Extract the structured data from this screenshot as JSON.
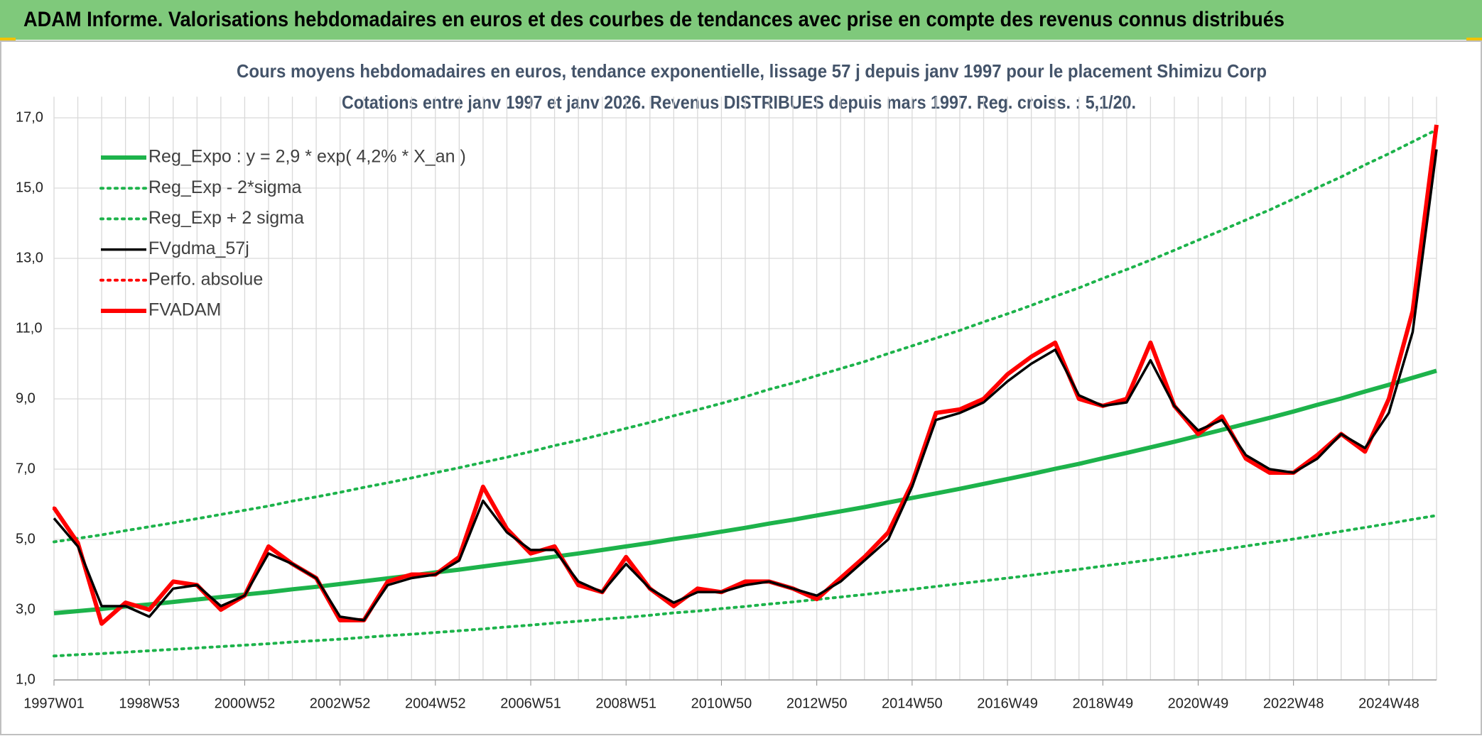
{
  "header": {
    "title": "ADAM Informe. Valorisations hebdomadaires en euros et des courbes de tendances avec prise en compte des revenus connus distribués"
  },
  "chart_data": {
    "type": "line",
    "title": "Cours moyens hebdomadaires en euros, tendance exponentielle, lissage 57 j depuis janv 1997 pour le placement Shimizu Corp",
    "subtitle": "Cotations entre janv 1997 et janv 2026. Revenus DISTRIBUES depuis mars 1997. Reg. croiss. : 5,1/20.",
    "categories": [
      "1997W01",
      null,
      null,
      null,
      "1998W53",
      null,
      null,
      null,
      "2000W52",
      null,
      null,
      null,
      "2002W52",
      null,
      null,
      null,
      "2004W52",
      null,
      null,
      null,
      "2006W51",
      null,
      null,
      null,
      "2008W51",
      null,
      null,
      null,
      "2010W50",
      null,
      null,
      null,
      "2012W50",
      null,
      null,
      null,
      "2014W50",
      null,
      null,
      null,
      "2016W49",
      null,
      null,
      null,
      "2018W49",
      null,
      null,
      null,
      "2020W49",
      null,
      null,
      null,
      "2022W48",
      null,
      null,
      null,
      "2024W48",
      null,
      null
    ],
    "series": [
      {
        "name": "Reg_Expo : y = 2,9 * exp( 4,2% *  X_an )",
        "color": "#1db34b",
        "line_style": "solid-thick",
        "values": [
          2.9,
          2.96,
          3.02,
          3.09,
          3.15,
          3.22,
          3.29,
          3.36,
          3.43,
          3.5,
          3.58,
          3.65,
          3.73,
          3.81,
          3.89,
          3.97,
          4.06,
          4.14,
          4.23,
          4.32,
          4.41,
          4.51,
          4.6,
          4.7,
          4.8,
          4.9,
          5.01,
          5.11,
          5.22,
          5.33,
          5.45,
          5.56,
          5.68,
          5.8,
          5.92,
          6.05,
          6.18,
          6.31,
          6.44,
          6.58,
          6.72,
          6.86,
          7.01,
          7.15,
          7.31,
          7.46,
          7.62,
          7.78,
          7.95,
          8.12,
          8.29,
          8.46,
          8.64,
          8.83,
          9.01,
          9.21,
          9.4,
          9.6,
          9.8
        ]
      },
      {
        "name": "Reg_Exp - 2*sigma",
        "color": "#1db34b",
        "line_style": "dotted",
        "values": [
          1.68,
          1.72,
          1.75,
          1.79,
          1.83,
          1.87,
          1.91,
          1.95,
          1.99,
          2.03,
          2.08,
          2.12,
          2.16,
          2.21,
          2.26,
          2.3,
          2.35,
          2.4,
          2.45,
          2.51,
          2.56,
          2.62,
          2.67,
          2.73,
          2.78,
          2.84,
          2.91,
          2.96,
          3.03,
          3.09,
          3.16,
          3.22,
          3.29,
          3.36,
          3.43,
          3.51,
          3.58,
          3.66,
          3.74,
          3.82,
          3.9,
          3.98,
          4.07,
          4.15,
          4.24,
          4.33,
          4.42,
          4.51,
          4.61,
          4.71,
          4.81,
          4.91,
          5.01,
          5.12,
          5.23,
          5.34,
          5.45,
          5.57,
          5.68
        ]
      },
      {
        "name": "Reg_Exp + 2 sigma",
        "color": "#1db34b",
        "line_style": "dotted",
        "values": [
          4.93,
          5.03,
          5.13,
          5.25,
          5.36,
          5.47,
          5.59,
          5.71,
          5.83,
          5.95,
          6.09,
          6.21,
          6.34,
          6.48,
          6.61,
          6.75,
          6.9,
          7.04,
          7.19,
          7.34,
          7.5,
          7.67,
          7.82,
          7.99,
          8.16,
          8.33,
          8.52,
          8.69,
          8.87,
          9.06,
          9.27,
          9.45,
          9.66,
          9.86,
          10.06,
          10.29,
          10.51,
          10.73,
          10.95,
          11.19,
          11.42,
          11.66,
          11.92,
          12.16,
          12.43,
          12.68,
          12.95,
          13.23,
          13.52,
          13.8,
          14.09,
          14.38,
          14.69,
          15.01,
          15.32,
          15.66,
          15.98,
          16.32,
          16.66
        ]
      },
      {
        "name": "FVgdma_57j",
        "color": "#000000",
        "line_style": "solid",
        "values": [
          5.6,
          4.8,
          3.1,
          3.1,
          2.8,
          3.6,
          3.7,
          3.1,
          3.4,
          4.6,
          4.3,
          3.9,
          2.8,
          2.7,
          3.7,
          3.9,
          4.0,
          4.4,
          6.1,
          5.2,
          4.7,
          4.7,
          3.8,
          3.5,
          4.3,
          3.6,
          3.2,
          3.5,
          3.5,
          3.7,
          3.8,
          3.6,
          3.4,
          3.8,
          4.4,
          5.0,
          6.5,
          8.4,
          8.6,
          8.9,
          9.5,
          10.0,
          10.4,
          9.1,
          8.8,
          8.9,
          10.1,
          8.8,
          8.1,
          8.4,
          7.4,
          7.0,
          6.9,
          7.3,
          8.0,
          7.6,
          8.6,
          10.9,
          16.1
        ]
      },
      {
        "name": "Perfo. absolue",
        "color": "#ff0000",
        "line_style": "dotted",
        "values": [
          5.9,
          4.9,
          2.6,
          3.2,
          3.0,
          3.8,
          3.7,
          3.0,
          3.4,
          4.8,
          4.3,
          3.9,
          2.7,
          2.7,
          3.8,
          4.0,
          4.0,
          4.5,
          6.5,
          5.3,
          4.6,
          4.8,
          3.7,
          3.5,
          4.5,
          3.6,
          3.1,
          3.6,
          3.5,
          3.8,
          3.8,
          3.6,
          3.3,
          3.9,
          4.5,
          5.2,
          6.6,
          8.6,
          8.7,
          9.0,
          9.7,
          10.2,
          10.6,
          9.0,
          8.8,
          9.0,
          10.6,
          8.8,
          8.0,
          8.5,
          7.3,
          6.9,
          6.9,
          7.4,
          8.0,
          7.5,
          9.0,
          11.5,
          16.8
        ]
      },
      {
        "name": "FVADAM",
        "color": "#ff0000",
        "line_style": "solid-thick",
        "values": [
          5.9,
          4.9,
          2.6,
          3.2,
          3.0,
          3.8,
          3.7,
          3.0,
          3.4,
          4.8,
          4.3,
          3.9,
          2.7,
          2.7,
          3.8,
          4.0,
          4.0,
          4.5,
          6.5,
          5.3,
          4.6,
          4.8,
          3.7,
          3.5,
          4.5,
          3.6,
          3.1,
          3.6,
          3.5,
          3.8,
          3.8,
          3.6,
          3.3,
          3.9,
          4.5,
          5.2,
          6.6,
          8.6,
          8.7,
          9.0,
          9.7,
          10.2,
          10.6,
          9.0,
          8.8,
          9.0,
          10.6,
          8.8,
          8.0,
          8.5,
          7.3,
          6.9,
          6.9,
          7.4,
          8.0,
          7.5,
          9.0,
          11.5,
          16.8
        ]
      }
    ],
    "ylim": [
      1,
      17.6
    ],
    "yticks": [
      {
        "value": 1,
        "label": "1,0"
      },
      {
        "value": 3,
        "label": "3,0"
      },
      {
        "value": 5,
        "label": "5,0"
      },
      {
        "value": 7,
        "label": "7,0"
      },
      {
        "value": 9,
        "label": "9,0"
      },
      {
        "value": 11,
        "label": "11,0"
      },
      {
        "value": 13,
        "label": "13,0"
      },
      {
        "value": 15,
        "label": "15,0"
      },
      {
        "value": 17,
        "label": "17,0"
      }
    ],
    "grid": true,
    "legend": "upper left"
  }
}
